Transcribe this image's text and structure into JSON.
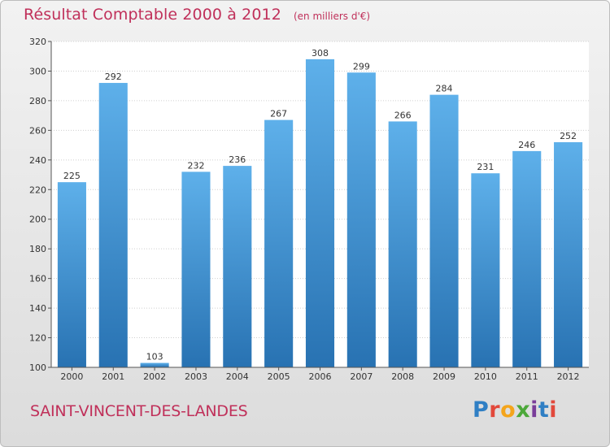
{
  "header": {
    "title": "Résultat Comptable 2000 à 2012",
    "unit": "(en milliers d'€)"
  },
  "footer": {
    "city": "SAINT-VINCENT-DES-LANDES",
    "logo_letters": [
      "P",
      "r",
      "o",
      "x",
      "i",
      "t",
      "i"
    ],
    "logo_colors": [
      "#2f7fc4",
      "#e2483b",
      "#f4a51c",
      "#4ca83a",
      "#7a3d9a",
      "#2f7fc4",
      "#e2483b"
    ]
  },
  "colors": {
    "bar_top": "#5eb0ea",
    "bar_bottom": "#2872b2",
    "title": "#c0305a"
  },
  "chart_data": {
    "type": "bar",
    "title": "Résultat Comptable 2000 à 2012",
    "subtitle": "(en milliers d'€)",
    "categories": [
      "2000",
      "2001",
      "2002",
      "2003",
      "2004",
      "2005",
      "2006",
      "2007",
      "2008",
      "2009",
      "2010",
      "2011",
      "2012"
    ],
    "values": [
      225,
      292,
      103,
      232,
      236,
      267,
      308,
      299,
      266,
      284,
      231,
      246,
      252
    ],
    "ylim": [
      100,
      320
    ],
    "yticks": [
      100,
      120,
      140,
      160,
      180,
      200,
      220,
      240,
      260,
      280,
      300,
      320
    ],
    "grid": true,
    "data_labels": true
  }
}
